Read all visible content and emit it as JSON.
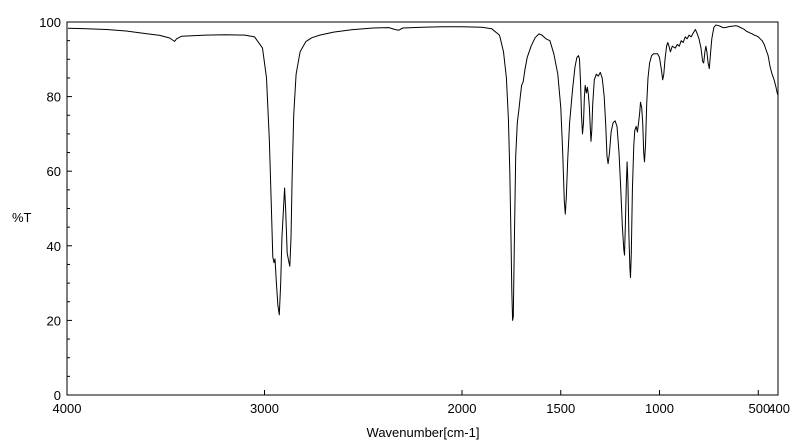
{
  "chart_data": {
    "type": "line",
    "xlabel": "Wavenumber[cm-1]",
    "ylabel": "%T",
    "xlim": [
      4000,
      400
    ],
    "ylim": [
      0,
      100
    ],
    "x_reversed": true,
    "grid": false,
    "x_ticks": [
      {
        "value": 4000,
        "label": "4000"
      },
      {
        "value": 3000,
        "label": "3000"
      },
      {
        "value": 2000,
        "label": "2000"
      },
      {
        "value": 1500,
        "label": "1500"
      },
      {
        "value": 1000,
        "label": "1000"
      },
      {
        "value": 500,
        "label": "500"
      },
      {
        "value": 400,
        "label": "400"
      }
    ],
    "y_ticks": [
      {
        "value": 0,
        "label": "0"
      },
      {
        "value": 20,
        "label": "20"
      },
      {
        "value": 40,
        "label": "40"
      },
      {
        "value": 60,
        "label": "60"
      },
      {
        "value": 80,
        "label": "80"
      },
      {
        "value": 100,
        "label": "100"
      }
    ],
    "series": [
      {
        "color": "#000000",
        "points": [
          [
            3995,
            98.3
          ],
          [
            3900,
            98.2
          ],
          [
            3800,
            98.0
          ],
          [
            3700,
            97.6
          ],
          [
            3600,
            96.9
          ],
          [
            3530,
            96.4
          ],
          [
            3480,
            95.7
          ],
          [
            3455,
            94.8
          ],
          [
            3445,
            95.5
          ],
          [
            3420,
            96.2
          ],
          [
            3300,
            96.5
          ],
          [
            3200,
            96.6
          ],
          [
            3100,
            96.5
          ],
          [
            3050,
            96.0
          ],
          [
            3010,
            93.0
          ],
          [
            2990,
            85.0
          ],
          [
            2975,
            68.0
          ],
          [
            2965,
            50.0
          ],
          [
            2958,
            37.0
          ],
          [
            2952,
            35.5
          ],
          [
            2947,
            36.5
          ],
          [
            2940,
            30.0
          ],
          [
            2932,
            24.0
          ],
          [
            2925,
            21.5
          ],
          [
            2918,
            30.0
          ],
          [
            2912,
            42.0
          ],
          [
            2904,
            50.0
          ],
          [
            2898,
            55.5
          ],
          [
            2893,
            50.0
          ],
          [
            2885,
            38.0
          ],
          [
            2878,
            36.0
          ],
          [
            2872,
            34.5
          ],
          [
            2866,
            42.0
          ],
          [
            2860,
            58.0
          ],
          [
            2852,
            75.0
          ],
          [
            2840,
            86.0
          ],
          [
            2820,
            92.0
          ],
          [
            2790,
            94.8
          ],
          [
            2760,
            95.8
          ],
          [
            2720,
            96.5
          ],
          [
            2650,
            97.3
          ],
          [
            2560,
            97.9
          ],
          [
            2450,
            98.4
          ],
          [
            2370,
            98.5
          ],
          [
            2340,
            98.0
          ],
          [
            2320,
            97.8
          ],
          [
            2300,
            98.4
          ],
          [
            2200,
            98.6
          ],
          [
            2100,
            98.7
          ],
          [
            2000,
            98.7
          ],
          [
            1900,
            98.6
          ],
          [
            1850,
            98.2
          ],
          [
            1810,
            96.5
          ],
          [
            1790,
            92.0
          ],
          [
            1775,
            85.0
          ],
          [
            1765,
            74.0
          ],
          [
            1758,
            60.0
          ],
          [
            1752,
            42.0
          ],
          [
            1748,
            28.0
          ],
          [
            1744,
            20.0
          ],
          [
            1740,
            21.0
          ],
          [
            1735,
            40.0
          ],
          [
            1728,
            64.0
          ],
          [
            1720,
            73.0
          ],
          [
            1712,
            76.5
          ],
          [
            1705,
            80.0
          ],
          [
            1698,
            83.0
          ],
          [
            1690,
            84.0
          ],
          [
            1682,
            87.0
          ],
          [
            1670,
            90.5
          ],
          [
            1650,
            93.5
          ],
          [
            1630,
            95.8
          ],
          [
            1610,
            96.8
          ],
          [
            1595,
            96.5
          ],
          [
            1575,
            95.5
          ],
          [
            1555,
            95.0
          ],
          [
            1535,
            91.5
          ],
          [
            1515,
            86.0
          ],
          [
            1500,
            77.0
          ],
          [
            1490,
            65.0
          ],
          [
            1482,
            52.0
          ],
          [
            1477,
            48.5
          ],
          [
            1472,
            53.0
          ],
          [
            1465,
            63.0
          ],
          [
            1455,
            73.0
          ],
          [
            1440,
            82.0
          ],
          [
            1428,
            88.0
          ],
          [
            1418,
            90.5
          ],
          [
            1410,
            91.0
          ],
          [
            1405,
            90.0
          ],
          [
            1400,
            84.0
          ],
          [
            1395,
            75.0
          ],
          [
            1390,
            70.0
          ],
          [
            1385,
            73.0
          ],
          [
            1380,
            80.0
          ],
          [
            1376,
            83.0
          ],
          [
            1370,
            81.0
          ],
          [
            1365,
            82.5
          ],
          [
            1360,
            80.5
          ],
          [
            1355,
            77.0
          ],
          [
            1350,
            71.0
          ],
          [
            1347,
            68.0
          ],
          [
            1343,
            71.0
          ],
          [
            1338,
            78.0
          ],
          [
            1330,
            84.5
          ],
          [
            1320,
            86.0
          ],
          [
            1310,
            85.5
          ],
          [
            1300,
            86.5
          ],
          [
            1290,
            85.0
          ],
          [
            1280,
            80.0
          ],
          [
            1272,
            72.0
          ],
          [
            1266,
            64.0
          ],
          [
            1260,
            62.0
          ],
          [
            1253,
            65.0
          ],
          [
            1245,
            70.5
          ],
          [
            1235,
            73.0
          ],
          [
            1225,
            73.5
          ],
          [
            1215,
            72.0
          ],
          [
            1205,
            65.0
          ],
          [
            1196,
            55.0
          ],
          [
            1188,
            45.0
          ],
          [
            1181,
            39.0
          ],
          [
            1177,
            37.5
          ],
          [
            1173,
            45.0
          ],
          [
            1168,
            56.0
          ],
          [
            1164,
            62.5
          ],
          [
            1160,
            57.0
          ],
          [
            1155,
            43.0
          ],
          [
            1150,
            34.0
          ],
          [
            1147,
            31.5
          ],
          [
            1143,
            38.0
          ],
          [
            1137,
            55.0
          ],
          [
            1130,
            67.0
          ],
          [
            1125,
            71.0
          ],
          [
            1118,
            72.0
          ],
          [
            1112,
            70.5
          ],
          [
            1106,
            73.0
          ],
          [
            1100,
            76.0
          ],
          [
            1096,
            78.5
          ],
          [
            1090,
            77.0
          ],
          [
            1085,
            73.0
          ],
          [
            1080,
            65.0
          ],
          [
            1076,
            62.5
          ],
          [
            1071,
            67.0
          ],
          [
            1065,
            78.0
          ],
          [
            1058,
            85.0
          ],
          [
            1050,
            89.0
          ],
          [
            1040,
            91.0
          ],
          [
            1030,
            91.5
          ],
          [
            1020,
            91.5
          ],
          [
            1010,
            91.5
          ],
          [
            1000,
            90.5
          ],
          [
            990,
            87.0
          ],
          [
            984,
            84.5
          ],
          [
            978,
            86.0
          ],
          [
            972,
            90.0
          ],
          [
            964,
            93.5
          ],
          [
            958,
            94.5
          ],
          [
            952,
            93.5
          ],
          [
            945,
            92.0
          ],
          [
            935,
            93.5
          ],
          [
            920,
            93.0
          ],
          [
            910,
            94.0
          ],
          [
            900,
            93.5
          ],
          [
            890,
            95.0
          ],
          [
            880,
            94.5
          ],
          [
            870,
            96.0
          ],
          [
            860,
            95.5
          ],
          [
            850,
            96.5
          ],
          [
            840,
            96.0
          ],
          [
            830,
            97.0
          ],
          [
            818,
            98.0
          ],
          [
            810,
            97.0
          ],
          [
            800,
            95.5
          ],
          [
            790,
            93.0
          ],
          [
            782,
            89.5
          ],
          [
            776,
            89.0
          ],
          [
            770,
            92.0
          ],
          [
            765,
            93.5
          ],
          [
            760,
            92.0
          ],
          [
            754,
            89.0
          ],
          [
            748,
            87.5
          ],
          [
            742,
            91.5
          ],
          [
            735,
            95.5
          ],
          [
            725,
            98.5
          ],
          [
            715,
            99.2
          ],
          [
            700,
            99.0
          ],
          [
            690,
            98.8
          ],
          [
            680,
            98.5
          ],
          [
            670,
            98.5
          ],
          [
            660,
            98.6
          ],
          [
            645,
            98.8
          ],
          [
            630,
            98.9
          ],
          [
            612,
            99.0
          ],
          [
            600,
            98.8
          ],
          [
            590,
            98.5
          ],
          [
            580,
            98.3
          ],
          [
            570,
            98.0
          ],
          [
            560,
            97.5
          ],
          [
            550,
            97.3
          ],
          [
            540,
            97.0
          ],
          [
            530,
            96.8
          ],
          [
            520,
            96.5
          ],
          [
            510,
            96.3
          ],
          [
            500,
            96.0
          ],
          [
            490,
            95.5
          ],
          [
            480,
            95.0
          ],
          [
            470,
            94.0
          ],
          [
            460,
            92.5
          ],
          [
            450,
            91.0
          ],
          [
            440,
            88.0
          ],
          [
            430,
            86.0
          ],
          [
            420,
            84.5
          ],
          [
            410,
            82.5
          ],
          [
            402,
            80.5
          ]
        ]
      }
    ]
  }
}
